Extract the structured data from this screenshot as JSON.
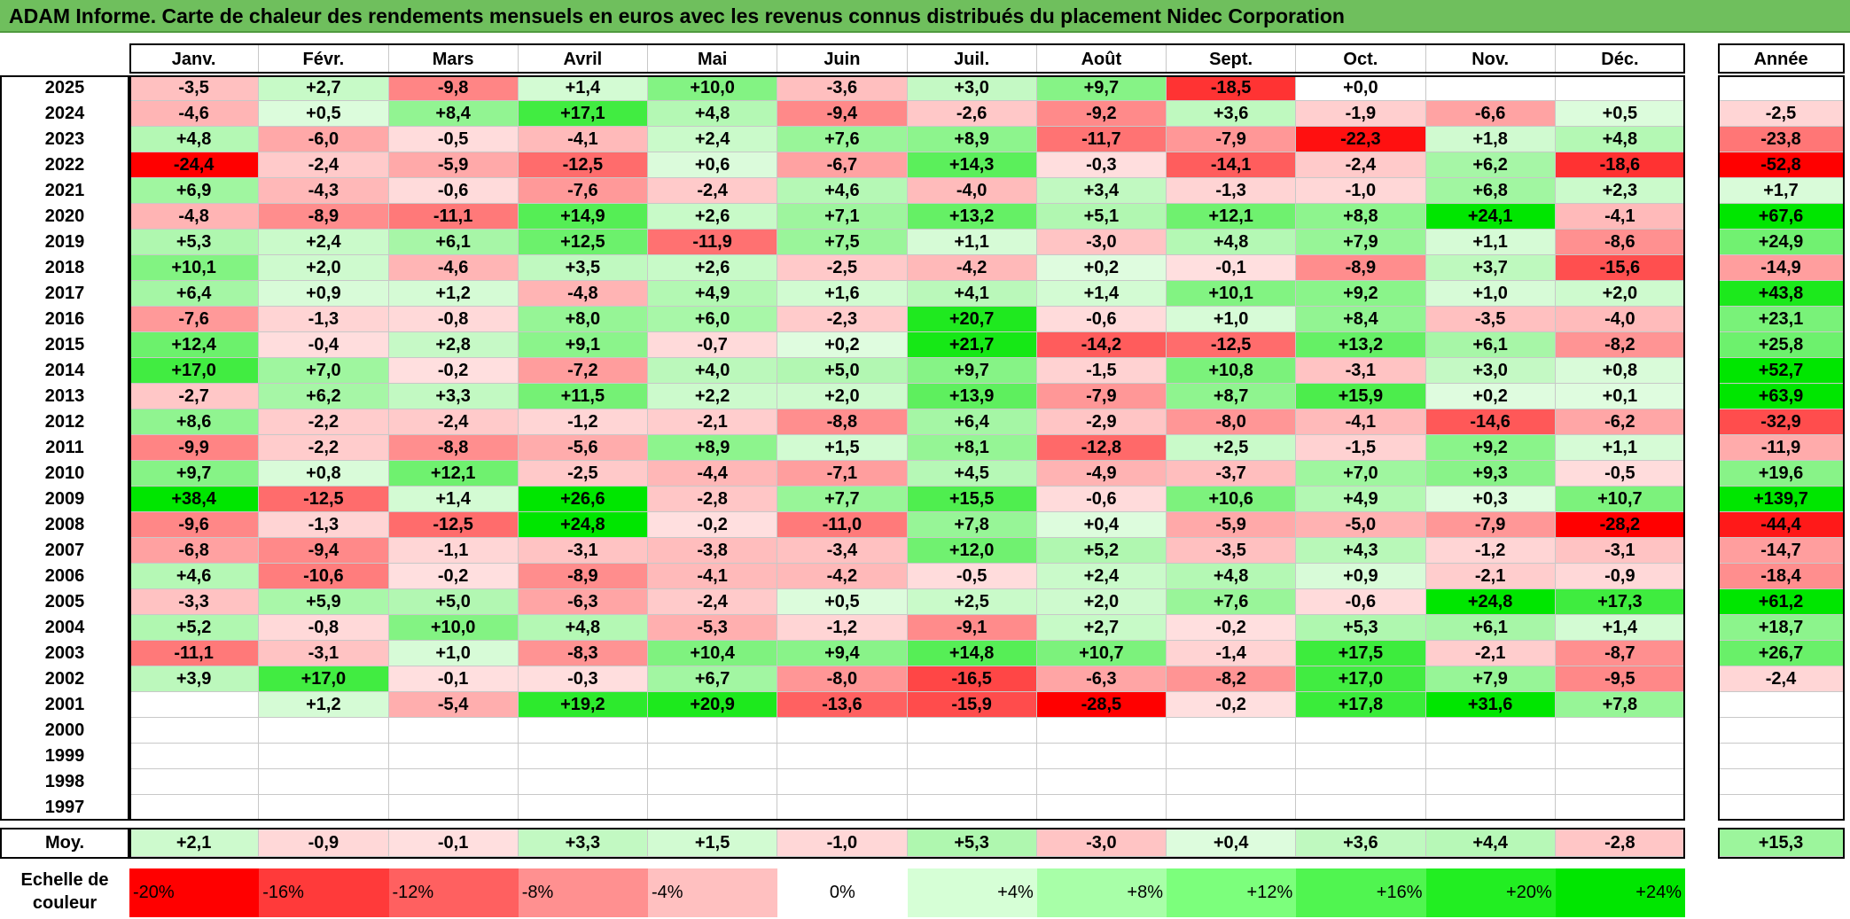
{
  "title": "ADAM Informe. Carte de chaleur des rendements mensuels en euros avec les revenus connus distribués du placement Nidec Corporation",
  "chart_data": {
    "type": "heatmap",
    "title": "ADAM Informe. Carte de chaleur des rendements mensuels en euros avec les revenus connus distribués du placement Nidec Corporation",
    "months": [
      "Janv.",
      "Févr.",
      "Mars",
      "Avril",
      "Mai",
      "Juin",
      "Juil.",
      "Août",
      "Sept.",
      "Oct.",
      "Nov.",
      "Déc."
    ],
    "annual_header": "Année",
    "rows": [
      {
        "year": "2025",
        "values": [
          "-3,5",
          "+2,7",
          "-9,8",
          "+1,4",
          "+10,0",
          "-3,6",
          "+3,0",
          "+9,7",
          "-18,5",
          "+0,0",
          "",
          ""
        ],
        "annual": ""
      },
      {
        "year": "2024",
        "values": [
          "-4,6",
          "+0,5",
          "+8,4",
          "+17,1",
          "+4,8",
          "-9,4",
          "-2,6",
          "-9,2",
          "+3,6",
          "-1,9",
          "-6,6",
          "+0,5"
        ],
        "annual": "-2,5"
      },
      {
        "year": "2023",
        "values": [
          "+4,8",
          "-6,0",
          "-0,5",
          "-4,1",
          "+2,4",
          "+7,6",
          "+8,9",
          "-11,7",
          "-7,9",
          "-22,3",
          "+1,8",
          "+4,8"
        ],
        "annual": "-23,8"
      },
      {
        "year": "2022",
        "values": [
          "-24,4",
          "-2,4",
          "-5,9",
          "-12,5",
          "+0,6",
          "-6,7",
          "+14,3",
          "-0,3",
          "-14,1",
          "-2,4",
          "+6,2",
          "-18,6"
        ],
        "annual": "-52,8"
      },
      {
        "year": "2021",
        "values": [
          "+6,9",
          "-4,3",
          "-0,6",
          "-7,6",
          "-2,4",
          "+4,6",
          "-4,0",
          "+3,4",
          "-1,3",
          "-1,0",
          "+6,8",
          "+2,3"
        ],
        "annual": "+1,7"
      },
      {
        "year": "2020",
        "values": [
          "-4,8",
          "-8,9",
          "-11,1",
          "+14,9",
          "+2,6",
          "+7,1",
          "+13,2",
          "+5,1",
          "+12,1",
          "+8,8",
          "+24,1",
          "-4,1"
        ],
        "annual": "+67,6"
      },
      {
        "year": "2019",
        "values": [
          "+5,3",
          "+2,4",
          "+6,1",
          "+12,5",
          "-11,9",
          "+7,5",
          "+1,1",
          "-3,0",
          "+4,8",
          "+7,9",
          "+1,1",
          "-8,6"
        ],
        "annual": "+24,9"
      },
      {
        "year": "2018",
        "values": [
          "+10,1",
          "+2,0",
          "-4,6",
          "+3,5",
          "+2,6",
          "-2,5",
          "-4,2",
          "+0,2",
          "-0,1",
          "-8,9",
          "+3,7",
          "-15,6"
        ],
        "annual": "-14,9"
      },
      {
        "year": "2017",
        "values": [
          "+6,4",
          "+0,9",
          "+1,2",
          "-4,8",
          "+4,9",
          "+1,6",
          "+4,1",
          "+1,4",
          "+10,1",
          "+9,2",
          "+1,0",
          "+2,0"
        ],
        "annual": "+43,8"
      },
      {
        "year": "2016",
        "values": [
          "-7,6",
          "-1,3",
          "-0,8",
          "+8,0",
          "+6,0",
          "-2,3",
          "+20,7",
          "-0,6",
          "+1,0",
          "+8,4",
          "-3,5",
          "-4,0"
        ],
        "annual": "+23,1"
      },
      {
        "year": "2015",
        "values": [
          "+12,4",
          "-0,4",
          "+2,8",
          "+9,1",
          "-0,7",
          "+0,2",
          "+21,7",
          "-14,2",
          "-12,5",
          "+13,2",
          "+6,1",
          "-8,2"
        ],
        "annual": "+25,8"
      },
      {
        "year": "2014",
        "values": [
          "+17,0",
          "+7,0",
          "-0,2",
          "-7,2",
          "+4,0",
          "+5,0",
          "+9,7",
          "-1,5",
          "+10,8",
          "-3,1",
          "+3,0",
          "+0,8"
        ],
        "annual": "+52,7"
      },
      {
        "year": "2013",
        "values": [
          "-2,7",
          "+6,2",
          "+3,3",
          "+11,5",
          "+2,2",
          "+2,0",
          "+13,9",
          "-7,9",
          "+8,7",
          "+15,9",
          "+0,2",
          "+0,1"
        ],
        "annual": "+63,9"
      },
      {
        "year": "2012",
        "values": [
          "+8,6",
          "-2,2",
          "-2,4",
          "-1,2",
          "-2,1",
          "-8,8",
          "+6,4",
          "-2,9",
          "-8,0",
          "-4,1",
          "-14,6",
          "-6,2"
        ],
        "annual": "-32,9"
      },
      {
        "year": "2011",
        "values": [
          "-9,9",
          "-2,2",
          "-8,8",
          "-5,6",
          "+8,9",
          "+1,5",
          "+8,1",
          "-12,8",
          "+2,5",
          "-1,5",
          "+9,2",
          "+1,1"
        ],
        "annual": "-11,9"
      },
      {
        "year": "2010",
        "values": [
          "+9,7",
          "+0,8",
          "+12,1",
          "-2,5",
          "-4,4",
          "-7,1",
          "+4,5",
          "-4,9",
          "-3,7",
          "+7,0",
          "+9,3",
          "-0,5"
        ],
        "annual": "+19,6"
      },
      {
        "year": "2009",
        "values": [
          "+38,4",
          "-12,5",
          "+1,4",
          "+26,6",
          "-2,8",
          "+7,7",
          "+15,5",
          "-0,6",
          "+10,6",
          "+4,9",
          "+0,3",
          "+10,7"
        ],
        "annual": "+139,7"
      },
      {
        "year": "2008",
        "values": [
          "-9,6",
          "-1,3",
          "-12,5",
          "+24,8",
          "-0,2",
          "-11,0",
          "+7,8",
          "+0,4",
          "-5,9",
          "-5,0",
          "-7,9",
          "-28,2"
        ],
        "annual": "-44,4"
      },
      {
        "year": "2007",
        "values": [
          "-6,8",
          "-9,4",
          "-1,1",
          "-3,1",
          "-3,8",
          "-3,4",
          "+12,0",
          "+5,2",
          "-3,5",
          "+4,3",
          "-1,2",
          "-3,1"
        ],
        "annual": "-14,7"
      },
      {
        "year": "2006",
        "values": [
          "+4,6",
          "-10,6",
          "-0,2",
          "-8,9",
          "-4,1",
          "-4,2",
          "-0,5",
          "+2,4",
          "+4,8",
          "+0,9",
          "-2,1",
          "-0,9"
        ],
        "annual": "-18,4"
      },
      {
        "year": "2005",
        "values": [
          "-3,3",
          "+5,9",
          "+5,0",
          "-6,3",
          "-2,4",
          "+0,5",
          "+2,5",
          "+2,0",
          "+7,6",
          "-0,6",
          "+24,8",
          "+17,3"
        ],
        "annual": "+61,2"
      },
      {
        "year": "2004",
        "values": [
          "+5,2",
          "-0,8",
          "+10,0",
          "+4,8",
          "-5,3",
          "-1,2",
          "-9,1",
          "+2,7",
          "-0,2",
          "+5,3",
          "+6,1",
          "+1,4"
        ],
        "annual": "+18,7"
      },
      {
        "year": "2003",
        "values": [
          "-11,1",
          "-3,1",
          "+1,0",
          "-8,3",
          "+10,4",
          "+9,4",
          "+14,8",
          "+10,7",
          "-1,4",
          "+17,5",
          "-2,1",
          "-8,7"
        ],
        "annual": "+26,7"
      },
      {
        "year": "2002",
        "values": [
          "+3,9",
          "+17,0",
          "-0,1",
          "-0,3",
          "+6,7",
          "-8,0",
          "-16,5",
          "-6,3",
          "-8,2",
          "+17,0",
          "+7,9",
          "-9,5"
        ],
        "annual": "-2,4"
      },
      {
        "year": "2001",
        "values": [
          "",
          "+1,2",
          "-5,4",
          "+19,2",
          "+20,9",
          "-13,6",
          "-15,9",
          "-28,5",
          "-0,2",
          "+17,8",
          "+31,6",
          "+7,8"
        ],
        "annual": ""
      },
      {
        "year": "2000",
        "values": [
          "",
          "",
          "",
          "",
          "",
          "",
          "",
          "",
          "",
          "",
          "",
          ""
        ],
        "annual": ""
      },
      {
        "year": "1999",
        "values": [
          "",
          "",
          "",
          "",
          "",
          "",
          "",
          "",
          "",
          "",
          "",
          ""
        ],
        "annual": ""
      },
      {
        "year": "1998",
        "values": [
          "",
          "",
          "",
          "",
          "",
          "",
          "",
          "",
          "",
          "",
          "",
          ""
        ],
        "annual": ""
      },
      {
        "year": "1997",
        "values": [
          "",
          "",
          "",
          "",
          "",
          "",
          "",
          "",
          "",
          "",
          "",
          ""
        ],
        "annual": ""
      }
    ],
    "average": {
      "label": "Moy.",
      "values": [
        "+2,1",
        "-0,9",
        "-0,1",
        "+3,3",
        "+1,5",
        "-1,0",
        "+5,3",
        "-3,0",
        "+0,4",
        "+3,6",
        "+4,4",
        "-2,8"
      ],
      "annual": "+15,3"
    },
    "scale": {
      "label": "Echelle de couleur",
      "steps": [
        "-20%",
        "-16%",
        "-12%",
        "-8%",
        "-4%",
        "0%",
        "+4%",
        "+8%",
        "+12%",
        "+16%",
        "+20%",
        "+24%"
      ]
    },
    "colors": {
      "negative_max": "#ff0000",
      "positive_max": "#00e600",
      "neutral": "#ffffff",
      "title_bg": "#6fbf5d"
    }
  }
}
